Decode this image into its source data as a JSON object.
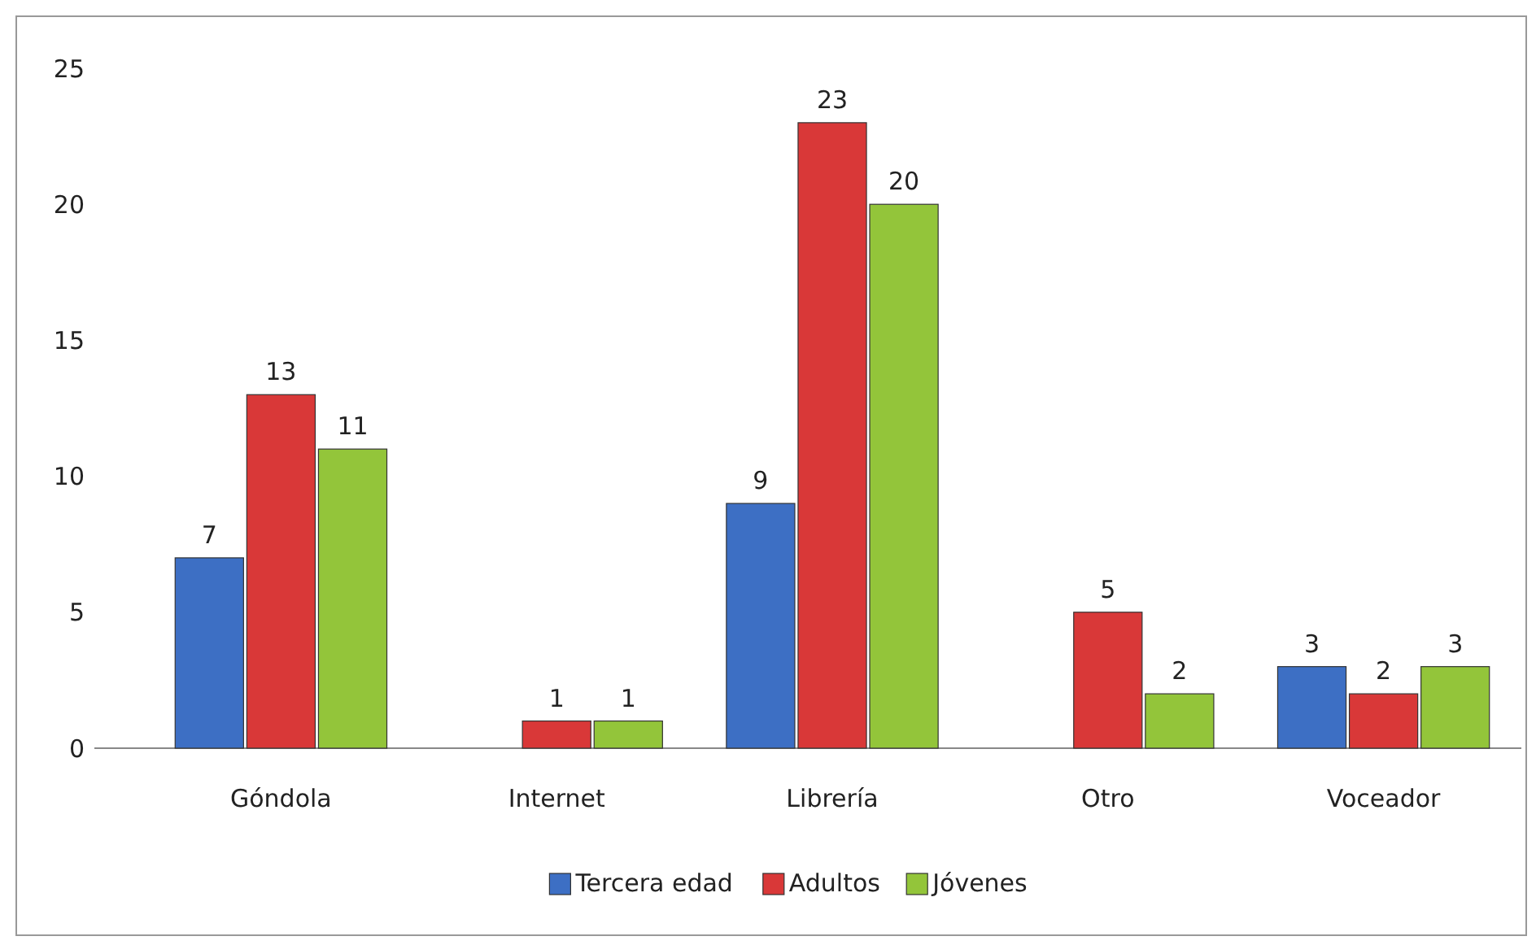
{
  "chart_data": {
    "type": "bar",
    "categories": [
      "Góndola",
      "Internet",
      "Librería",
      "Otro",
      "Voceador"
    ],
    "series": [
      {
        "name": "Tercera edad",
        "color": "#3d6fc4",
        "values": [
          7,
          null,
          9,
          null,
          3
        ]
      },
      {
        "name": "Adultos",
        "color": "#d93838",
        "values": [
          13,
          1,
          23,
          5,
          2
        ]
      },
      {
        "name": "Jóvenes",
        "color": "#93c53a",
        "values": [
          11,
          1,
          20,
          2,
          3
        ]
      }
    ],
    "ylim": [
      0,
      25
    ],
    "yticks": [
      0,
      5,
      10,
      15,
      20,
      25
    ],
    "data_labels": true,
    "legend": "bottom"
  }
}
